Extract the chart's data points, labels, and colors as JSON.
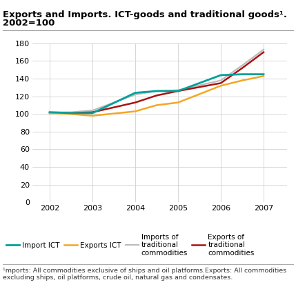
{
  "title_line1": "Exports and Imports. ICT-goods and traditional goods¹.",
  "title_line2": "2002=100",
  "footnote": "¹mports: All commodities exclusive of ships and oil platforms.Exports: All commodities\nexcluding ships, oil platforms, crude oil, natural gas and condensates.",
  "x": [
    2002,
    2002.5,
    2003,
    2004,
    2004.5,
    2005,
    2006,
    2006.5,
    2007
  ],
  "import_ict": [
    102,
    101,
    101,
    124,
    126,
    126,
    144,
    145,
    145
  ],
  "exports_ict": [
    101,
    100,
    98,
    103,
    110,
    113,
    132,
    138,
    143
  ],
  "imports_traditional": [
    102,
    102,
    104,
    122,
    126,
    127,
    138,
    155,
    173
  ],
  "exports_traditional": [
    101,
    101,
    102,
    113,
    121,
    126,
    135,
    152,
    170
  ],
  "import_ict_color": "#00a099",
  "exports_ict_color": "#f5a623",
  "imports_trad_color": "#bbbbbb",
  "exports_trad_color": "#aa1111",
  "ylim": [
    0,
    180
  ],
  "yticks": [
    0,
    20,
    40,
    60,
    80,
    100,
    120,
    140,
    160,
    180
  ],
  "xticks": [
    2002,
    2003,
    2004,
    2005,
    2006,
    2007
  ],
  "legend_labels": [
    "Import ICT",
    "Exports ICT",
    "Imports of\ntraditional\ncommodities",
    "Exports of\ntraditional\ncommodities"
  ],
  "background_color": "#ffffff",
  "grid_color": "#d0d0d0"
}
